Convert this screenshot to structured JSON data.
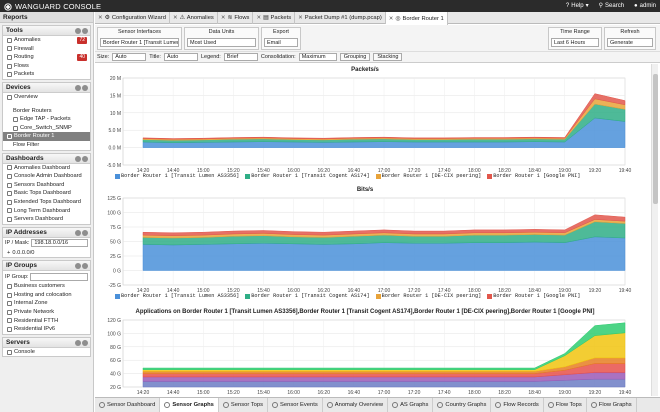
{
  "app": {
    "title": "WANGUARD CONSOLE",
    "help": "Help",
    "search": "Search",
    "user": "admin"
  },
  "sidebar": {
    "header": "Reports",
    "tools": {
      "title": "Tools",
      "items": [
        {
          "label": "Anomalies",
          "count": "72"
        },
        {
          "label": "Firewall",
          "count": ""
        },
        {
          "label": "Routing",
          "count": "40"
        },
        {
          "label": "Flows",
          "count": ""
        },
        {
          "label": "Packets",
          "count": ""
        }
      ]
    },
    "devices": {
      "title": "Devices",
      "items": [
        {
          "label": "Overview"
        },
        {
          "label": "Border Routers"
        },
        {
          "label": "Edge TAP - Packets"
        },
        {
          "label": "Core_Switch_SNMP"
        },
        {
          "label": "Border Router 1"
        },
        {
          "label": "Flow Filter"
        }
      ]
    },
    "dashboards": {
      "title": "Dashboards",
      "items": [
        {
          "label": "Anomalies Dashboard"
        },
        {
          "label": "Console Admin Dashboard"
        },
        {
          "label": "Sensors Dashboard"
        },
        {
          "label": "Basic Tops Dashboard"
        },
        {
          "label": "Extended Tops Dashboard"
        },
        {
          "label": "Long Term Dashboard"
        },
        {
          "label": "Servers Dashboard"
        }
      ]
    },
    "ip_addresses": {
      "title": "IP Addresses",
      "mask_label": "IP / Mask:",
      "mask_value": "198.18.0.0/16",
      "tree_item": "0.0.0.0/0"
    },
    "ip_groups": {
      "title": "IP Groups",
      "group_label": "IP Group:",
      "items": [
        {
          "label": "Business customers"
        },
        {
          "label": "Hosting and colocation"
        },
        {
          "label": "Internal Zone"
        },
        {
          "label": "Private Network"
        },
        {
          "label": "Residential FTTH"
        },
        {
          "label": "Residential IPv6"
        }
      ]
    },
    "servers": {
      "title": "Servers",
      "items": [
        {
          "label": "Console"
        }
      ]
    }
  },
  "tabs": [
    {
      "label": "Configuration Wizard"
    },
    {
      "label": "Anomalies"
    },
    {
      "label": "Flows"
    },
    {
      "label": "Packets"
    },
    {
      "label": "Packet Dump #1 (dump.pcap)"
    },
    {
      "label": "Border Router 1"
    }
  ],
  "toolbar": {
    "sensor_interfaces": {
      "label": "Sensor Interfaces",
      "value": "Border Router 1 [Transit Lumen"
    },
    "data_units": {
      "label": "Data Units",
      "value": "Most Used"
    },
    "export": {
      "label": "Export",
      "value": "Email"
    },
    "time_range": {
      "label": "Time Range",
      "value": "Last 6 Hours"
    },
    "refresh": {
      "label": "Refresh",
      "value": "Generate"
    }
  },
  "options": {
    "size_label": "Size:",
    "size": "Auto",
    "title_label": "Title:",
    "title": "Auto",
    "legend_label": "Legend:",
    "legend": "Brief",
    "consolidation_label": "Consolidation:",
    "consolidation": "Maximum",
    "grouping": "Grouping",
    "stacking": "Stacking"
  },
  "bottom_tabs": [
    {
      "label": "Sensor Dashboard"
    },
    {
      "label": "Sensor Graphs"
    },
    {
      "label": "Sensor Tops"
    },
    {
      "label": "Sensor Events"
    },
    {
      "label": "Anomaly Overview"
    },
    {
      "label": "AS Graphs"
    },
    {
      "label": "Country Graphs"
    },
    {
      "label": "Flow Records"
    },
    {
      "label": "Flow Tops"
    },
    {
      "label": "Flow Graphs"
    }
  ],
  "colors": {
    "series": [
      "#4a90d9",
      "#2fae86",
      "#e8a33a",
      "#e2574c"
    ],
    "apps": [
      "#6c7cc4",
      "#9b59b6",
      "#e8504a",
      "#e67e22",
      "#f1c40f",
      "#2ecc71",
      "#1abc9c",
      "#3b8fd4"
    ]
  },
  "chart_data": [
    {
      "type": "area",
      "title": "Packets/s",
      "x": [
        "14:20",
        "14:40",
        "15:00",
        "15:20",
        "15:40",
        "16:00",
        "16:20",
        "16:40",
        "17:00",
        "17:20",
        "17:40",
        "18:00",
        "18:20",
        "18:40",
        "19:00",
        "19:20",
        "19:40"
      ],
      "y_ticks": [
        "20 M",
        "15 M",
        "10 M",
        "5.0 M",
        "0.0 M",
        "-5.0 M"
      ],
      "ylim": [
        -5,
        20
      ],
      "series": [
        {
          "name": "Border Router 1 [Transit Lumen AS3356]",
          "values": [
            1.6,
            1.4,
            1.5,
            1.6,
            1.7,
            1.6,
            1.5,
            1.6,
            1.7,
            1.6,
            1.6,
            1.6,
            1.6,
            1.7,
            1.6,
            8.5,
            7.5
          ]
        },
        {
          "name": "Border Router 1 [Transit Cogent AS174]",
          "values": [
            0.7,
            0.7,
            0.7,
            0.8,
            0.8,
            0.7,
            0.7,
            0.8,
            0.8,
            0.7,
            0.7,
            0.8,
            0.8,
            0.8,
            0.8,
            4.0,
            3.5
          ]
        },
        {
          "name": "Border Router 1 [DE-CIX peering]",
          "values": [
            0.3,
            0.3,
            0.3,
            0.3,
            0.3,
            0.3,
            0.3,
            0.3,
            0.3,
            0.3,
            0.3,
            0.3,
            0.3,
            0.3,
            0.3,
            1.5,
            1.3
          ]
        },
        {
          "name": "Border Router 1 [Google PNI]",
          "values": [
            0.2,
            0.2,
            0.2,
            0.2,
            0.2,
            0.2,
            0.2,
            0.2,
            0.2,
            0.2,
            0.2,
            0.2,
            0.2,
            0.2,
            0.2,
            1.5,
            1.2
          ]
        }
      ]
    },
    {
      "type": "area",
      "title": "Bits/s",
      "x": [
        "14:20",
        "14:40",
        "15:00",
        "15:20",
        "15:40",
        "16:00",
        "16:20",
        "16:40",
        "17:00",
        "17:20",
        "17:40",
        "18:00",
        "18:20",
        "18:40",
        "19:00",
        "19:20",
        "19:40"
      ],
      "y_ticks": [
        "125 G",
        "100 G",
        "75 G",
        "50 G",
        "25 G",
        "0 G",
        "-25 G"
      ],
      "ylim": [
        -25,
        125
      ],
      "series": [
        {
          "name": "Border Router 1 [Transit Lumen AS3356]",
          "values": [
            45,
            44,
            45,
            46,
            47,
            46,
            45,
            46,
            48,
            47,
            47,
            48,
            48,
            49,
            48,
            58,
            56
          ]
        },
        {
          "name": "Border Router 1 [Transit Cogent AS174]",
          "values": [
            12,
            12,
            12,
            13,
            13,
            12,
            12,
            13,
            13,
            12,
            12,
            13,
            13,
            13,
            13,
            26,
            25
          ]
        },
        {
          "name": "Border Router 1 [DE-CIX peering]",
          "values": [
            4,
            4,
            4,
            4,
            4,
            4,
            4,
            4,
            4,
            4,
            4,
            4,
            4,
            4,
            4,
            4,
            4
          ]
        },
        {
          "name": "Border Router 1 [Google PNI]",
          "values": [
            5,
            5,
            5,
            5,
            5,
            5,
            5,
            5,
            5,
            5,
            5,
            5,
            5,
            5,
            5,
            8,
            7
          ]
        }
      ]
    },
    {
      "type": "area",
      "title": "Applications on Border Router 1 [Transit Lumen AS3356],Border Router 1 [Transit Cogent AS174],Border Router 1 [DE-CIX peering],Border Router 1 [Google PNI]",
      "x": [
        "14:20",
        "14:40",
        "15:00",
        "15:20",
        "15:40",
        "16:00",
        "16:20",
        "16:40",
        "17:00",
        "17:20",
        "17:40",
        "18:00",
        "18:20",
        "18:40",
        "19:00",
        "19:20",
        "19:40"
      ],
      "y_ticks": [
        "120 G",
        "100 G",
        "80 G",
        "60 G",
        "40 G",
        "20 G"
      ],
      "ylim": [
        0,
        120
      ],
      "series": [
        {
          "values": [
            10,
            10,
            10,
            10,
            10,
            10,
            10,
            10,
            10,
            10,
            10,
            10,
            10,
            10,
            12,
            14,
            14
          ]
        },
        {
          "values": [
            8,
            8,
            8,
            8,
            8,
            8,
            8,
            8,
            8,
            8,
            8,
            8,
            8,
            8,
            10,
            12,
            12
          ]
        },
        {
          "values": [
            6,
            6,
            6,
            6,
            6,
            6,
            6,
            6,
            6,
            6,
            6,
            6,
            6,
            6,
            8,
            16,
            16
          ]
        },
        {
          "values": [
            4,
            4,
            4,
            4,
            4,
            4,
            4,
            4,
            4,
            4,
            4,
            4,
            4,
            4,
            6,
            10,
            10
          ]
        },
        {
          "values": [
            3,
            3,
            3,
            3,
            3,
            3,
            3,
            3,
            3,
            3,
            3,
            3,
            3,
            3,
            20,
            40,
            45
          ]
        },
        {
          "values": [
            3,
            3,
            3,
            3,
            3,
            3,
            3,
            3,
            3,
            3,
            3,
            3,
            3,
            3,
            4,
            18,
            18
          ]
        }
      ]
    }
  ]
}
